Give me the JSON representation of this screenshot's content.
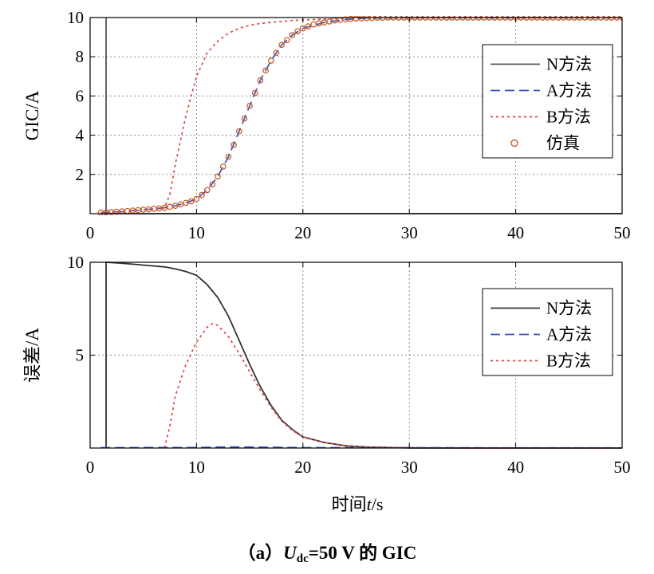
{
  "chart_data": [
    {
      "type": "line",
      "ylabel": "GIC/A",
      "xlim": [
        0,
        50
      ],
      "ylim": [
        0,
        10
      ],
      "xticks": [
        "0",
        "10",
        "20",
        "30",
        "40",
        "50"
      ],
      "yticks": [
        "2",
        "4",
        "6",
        "8",
        "10"
      ],
      "ytick_values": [
        2,
        4,
        6,
        8,
        10
      ],
      "grid": true,
      "legend_position": "right",
      "series": [
        {
          "name": "N方法",
          "style": "solid",
          "color": "#555555",
          "x": [
            1.5,
            1.5,
            1.5,
            50
          ],
          "y": [
            0,
            10,
            0,
            0
          ]
        },
        {
          "name": "A方法",
          "style": "dashed",
          "color": "#3a4fc4",
          "x": [
            1,
            3,
            5,
            7,
            8,
            9,
            10,
            11,
            12,
            13,
            14,
            15,
            16,
            17,
            18,
            19,
            20,
            22,
            24,
            26,
            30,
            35,
            40,
            45,
            50
          ],
          "y": [
            0.05,
            0.1,
            0.2,
            0.3,
            0.4,
            0.55,
            0.75,
            1.2,
            1.9,
            2.9,
            4.2,
            5.5,
            6.8,
            7.8,
            8.6,
            9.1,
            9.45,
            9.75,
            9.9,
            9.97,
            10,
            10,
            10,
            10,
            10
          ]
        },
        {
          "name": "B方法",
          "style": "dotted",
          "color": "#e04040",
          "x": [
            1,
            3,
            5,
            6,
            7,
            7.5,
            8,
            9,
            10,
            11,
            12,
            13,
            14,
            15,
            16,
            17,
            18,
            19,
            20,
            22,
            24,
            26,
            30,
            35,
            40,
            45,
            50
          ],
          "y": [
            0.05,
            0.1,
            0.2,
            0.25,
            0.3,
            1.0,
            2.5,
            5.0,
            7.0,
            8.2,
            8.8,
            9.2,
            9.45,
            9.6,
            9.7,
            9.75,
            9.8,
            9.85,
            9.88,
            9.92,
            9.95,
            9.98,
            10,
            10,
            10,
            10,
            10
          ]
        },
        {
          "name": "仿真",
          "style": "markers",
          "color": "#c8602a",
          "x": [
            1,
            1.5,
            2,
            2.5,
            3,
            3.5,
            4,
            4.5,
            5,
            5.5,
            6,
            6.5,
            7,
            7.5,
            8,
            8.5,
            9,
            9.5,
            10,
            10.5,
            11,
            11.5,
            12,
            12.5,
            13,
            13.5,
            14,
            14.5,
            15,
            15.5,
            16,
            16.5,
            17,
            17.5,
            18,
            18.5,
            19,
            19.5,
            20,
            20.5,
            21,
            21.5,
            22,
            22.5,
            23,
            23.5,
            24,
            24.5,
            25,
            25.5,
            26,
            26.5,
            27,
            27.5,
            28,
            28.5,
            29,
            29.5,
            30,
            30.5,
            31,
            31.5,
            32,
            32.5,
            33,
            33.5,
            34,
            34.5,
            35,
            35.5,
            36,
            36.5,
            37,
            37.5,
            38,
            38.5,
            39,
            39.5,
            40,
            40.5,
            41,
            41.5,
            42,
            42.5,
            43,
            43.5,
            44,
            44.5,
            45,
            45.5,
            46,
            46.5,
            47,
            47.5,
            48,
            48.5,
            49,
            49.5,
            50
          ],
          "y": [
            0.05,
            0.06,
            0.08,
            0.1,
            0.12,
            0.14,
            0.16,
            0.18,
            0.2,
            0.22,
            0.25,
            0.27,
            0.3,
            0.35,
            0.4,
            0.47,
            0.55,
            0.63,
            0.75,
            0.95,
            1.2,
            1.5,
            1.9,
            2.4,
            2.9,
            3.5,
            4.2,
            4.85,
            5.5,
            6.15,
            6.8,
            7.3,
            7.8,
            8.2,
            8.6,
            8.85,
            9.1,
            9.3,
            9.45,
            9.55,
            9.65,
            9.7,
            9.75,
            9.8,
            9.85,
            9.88,
            9.9,
            9.93,
            9.95,
            9.96,
            9.97,
            9.98,
            9.99,
            9.99,
            10,
            10,
            10,
            10,
            10,
            10,
            10,
            10,
            10,
            10,
            10,
            10,
            10,
            10,
            10,
            10,
            10,
            10,
            10,
            10,
            10,
            10,
            10,
            10,
            10,
            10,
            10,
            10,
            10,
            10,
            10,
            10,
            10,
            10,
            10,
            10,
            10,
            10,
            10,
            10,
            10,
            10,
            10,
            10,
            10
          ]
        }
      ]
    },
    {
      "type": "line",
      "ylabel": "误差/A",
      "xlabel": "时间t/s",
      "xlim": [
        0,
        50
      ],
      "ylim": [
        0,
        10
      ],
      "xticks": [
        "0",
        "10",
        "20",
        "30",
        "40",
        "50"
      ],
      "yticks": [
        "5",
        "10"
      ],
      "ytick_values": [
        5,
        10
      ],
      "grid": true,
      "legend_position": "right",
      "series": [
        {
          "name": "N方法",
          "style": "solid",
          "color": "#333333",
          "x": [
            1.5,
            1.5,
            1.5,
            3,
            5,
            7,
            8,
            9,
            10,
            11,
            12,
            13,
            14,
            15,
            16,
            17,
            18,
            19,
            20,
            22,
            24,
            26,
            30,
            35,
            40,
            45,
            50
          ],
          "y": [
            0,
            10,
            10,
            9.95,
            9.85,
            9.75,
            9.65,
            9.5,
            9.3,
            8.8,
            8.1,
            7.1,
            5.8,
            4.5,
            3.3,
            2.3,
            1.5,
            1.0,
            0.6,
            0.3,
            0.12,
            0.05,
            0.01,
            0,
            0,
            0,
            0
          ]
        },
        {
          "name": "A方法",
          "style": "dashed",
          "color": "#3a4fc4",
          "x": [
            1,
            10,
            13,
            16,
            20,
            50
          ],
          "y": [
            0.02,
            0.03,
            0.06,
            0.05,
            0.02,
            0.01
          ]
        },
        {
          "name": "B方法",
          "style": "dotted",
          "color": "#e04040",
          "x": [
            7,
            7.5,
            8,
            9,
            10,
            11,
            11.5,
            12,
            13,
            14,
            15,
            16,
            17,
            18,
            19,
            20,
            22,
            24,
            26,
            30,
            35,
            40,
            45,
            50
          ],
          "y": [
            0,
            1.2,
            2.8,
            4.5,
            5.7,
            6.5,
            6.7,
            6.6,
            6.0,
            5.1,
            4.1,
            3.1,
            2.2,
            1.45,
            0.95,
            0.6,
            0.3,
            0.12,
            0.05,
            0.01,
            0,
            0,
            0,
            0
          ]
        }
      ]
    }
  ],
  "caption": {
    "prefix": "（a）",
    "var": "U",
    "sub": "dc",
    "suffix": "=50 V 的 GIC"
  },
  "xlabel": "时间t/s"
}
